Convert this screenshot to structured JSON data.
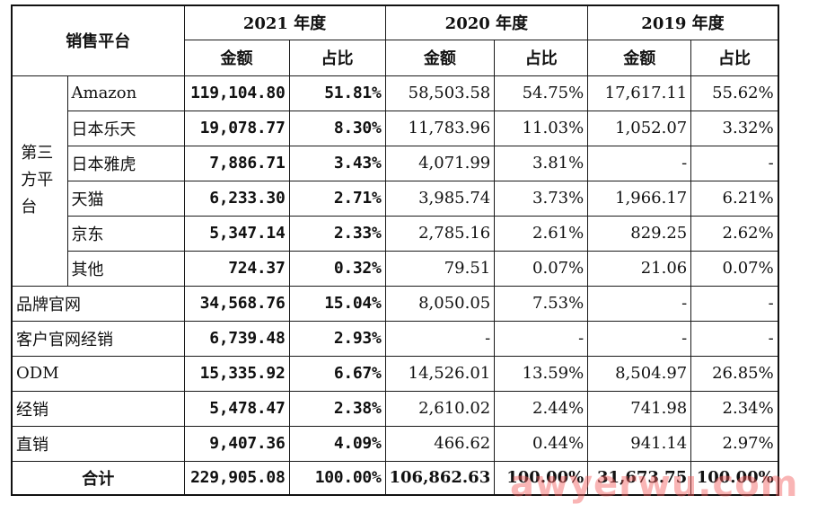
{
  "table": {
    "corner_label": "销售平台",
    "years": [
      "2021 年度",
      "2020 年度",
      "2019 年度"
    ],
    "sub_headers": {
      "amount": "金额",
      "ratio": "占比"
    },
    "group_label": "第三方平台",
    "third_party_rows": [
      {
        "name": "Amazon",
        "y2021_amount": "119,104.80",
        "y2021_ratio": "51.81%",
        "y2020_amount": "58,503.58",
        "y2020_ratio": "54.75%",
        "y2019_amount": "17,617.11",
        "y2019_ratio": "55.62%"
      },
      {
        "name": "日本乐天",
        "y2021_amount": "19,078.77",
        "y2021_ratio": "8.30%",
        "y2020_amount": "11,783.96",
        "y2020_ratio": "11.03%",
        "y2019_amount": "1,052.07",
        "y2019_ratio": "3.32%"
      },
      {
        "name": "日本雅虎",
        "y2021_amount": "7,886.71",
        "y2021_ratio": "3.43%",
        "y2020_amount": "4,071.99",
        "y2020_ratio": "3.81%",
        "y2019_amount": "-",
        "y2019_ratio": "-"
      },
      {
        "name": "天猫",
        "y2021_amount": "6,233.30",
        "y2021_ratio": "2.71%",
        "y2020_amount": "3,985.74",
        "y2020_ratio": "3.73%",
        "y2019_amount": "1,966.17",
        "y2019_ratio": "6.21%"
      },
      {
        "name": "京东",
        "y2021_amount": "5,347.14",
        "y2021_ratio": "2.33%",
        "y2020_amount": "2,785.16",
        "y2020_ratio": "2.61%",
        "y2019_amount": "829.25",
        "y2019_ratio": "2.62%"
      },
      {
        "name": "其他",
        "y2021_amount": "724.37",
        "y2021_ratio": "0.32%",
        "y2020_amount": "79.51",
        "y2020_ratio": "0.07%",
        "y2019_amount": "21.06",
        "y2019_ratio": "0.07%"
      }
    ],
    "other_rows": [
      {
        "name": "品牌官网",
        "y2021_amount": "34,568.76",
        "y2021_ratio": "15.04%",
        "y2020_amount": "8,050.05",
        "y2020_ratio": "7.53%",
        "y2019_amount": "-",
        "y2019_ratio": "-"
      },
      {
        "name": "客户官网经销",
        "y2021_amount": "6,739.48",
        "y2021_ratio": "2.93%",
        "y2020_amount": "-",
        "y2020_ratio": "-",
        "y2019_amount": "-",
        "y2019_ratio": "-"
      },
      {
        "name": "ODM",
        "y2021_amount": "15,335.92",
        "y2021_ratio": "6.67%",
        "y2020_amount": "14,526.01",
        "y2020_ratio": "13.59%",
        "y2019_amount": "8,504.97",
        "y2019_ratio": "26.85%"
      },
      {
        "name": "经销",
        "y2021_amount": "5,478.47",
        "y2021_ratio": "2.38%",
        "y2020_amount": "2,610.02",
        "y2020_ratio": "2.44%",
        "y2019_amount": "741.98",
        "y2019_ratio": "2.34%"
      },
      {
        "name": "直销",
        "y2021_amount": "9,407.36",
        "y2021_ratio": "4.09%",
        "y2020_amount": "466.62",
        "y2020_ratio": "0.44%",
        "y2019_amount": "941.14",
        "y2019_ratio": "2.97%"
      }
    ],
    "total": {
      "name": "合计",
      "y2021_amount": "229,905.08",
      "y2021_ratio": "100.00%",
      "y2020_amount": "106,862.63",
      "y2020_ratio": "100.00%",
      "y2019_amount": "31,673.75",
      "y2019_ratio": "100.00%"
    }
  },
  "watermark": "awyerwu.com"
}
